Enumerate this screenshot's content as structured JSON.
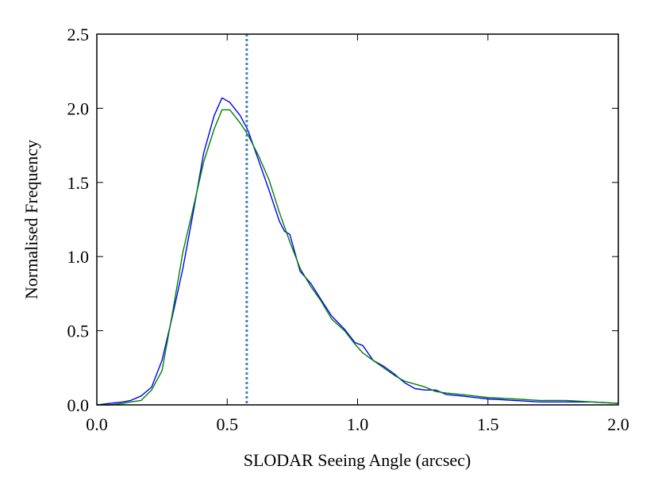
{
  "chart_data": {
    "type": "line",
    "title": "",
    "xlabel": "SLODAR Seeing Angle (arcsec)",
    "ylabel": "Normalised Frequency",
    "xlim": [
      0.0,
      2.0
    ],
    "ylim": [
      0.0,
      2.5
    ],
    "xticks": [
      0.0,
      0.5,
      1.0,
      1.5,
      2.0
    ],
    "xtick_labels": [
      "0.0",
      "0.5",
      "1.0",
      "1.5",
      "2.0"
    ],
    "yticks": [
      0.0,
      0.5,
      1.0,
      1.5,
      2.0,
      2.5
    ],
    "ytick_labels": [
      "0.0",
      "0.5",
      "1.0",
      "1.5",
      "2.0",
      "2.5"
    ],
    "grid": false,
    "series": [
      {
        "name": "blue",
        "color": "#0000ff",
        "x": [
          0.0,
          0.05,
          0.1,
          0.13,
          0.17,
          0.21,
          0.25,
          0.29,
          0.33,
          0.37,
          0.41,
          0.45,
          0.48,
          0.51,
          0.55,
          0.58,
          0.62,
          0.66,
          0.7,
          0.72,
          0.74,
          0.78,
          0.82,
          0.86,
          0.9,
          0.95,
          0.99,
          1.02,
          1.06,
          1.1,
          1.14,
          1.18,
          1.22,
          1.26,
          1.3,
          1.34,
          1.4,
          1.45,
          1.5,
          1.6,
          1.7,
          1.8,
          1.9,
          2.0
        ],
        "y": [
          0.0,
          0.01,
          0.02,
          0.03,
          0.06,
          0.12,
          0.3,
          0.6,
          0.92,
          1.3,
          1.7,
          1.95,
          2.07,
          2.04,
          1.95,
          1.85,
          1.65,
          1.45,
          1.24,
          1.17,
          1.15,
          0.9,
          0.82,
          0.71,
          0.6,
          0.51,
          0.42,
          0.4,
          0.3,
          0.26,
          0.21,
          0.15,
          0.11,
          0.1,
          0.1,
          0.07,
          0.06,
          0.05,
          0.04,
          0.03,
          0.02,
          0.02,
          0.02,
          0.01
        ]
      },
      {
        "name": "green",
        "color": "#008000",
        "x": [
          0.0,
          0.05,
          0.1,
          0.13,
          0.17,
          0.21,
          0.25,
          0.29,
          0.33,
          0.37,
          0.41,
          0.45,
          0.48,
          0.51,
          0.55,
          0.58,
          0.62,
          0.66,
          0.7,
          0.74,
          0.78,
          0.82,
          0.86,
          0.9,
          0.95,
          0.99,
          1.02,
          1.06,
          1.1,
          1.14,
          1.18,
          1.22,
          1.26,
          1.3,
          1.34,
          1.4,
          1.45,
          1.5,
          1.6,
          1.7,
          1.8,
          1.9,
          2.0
        ],
        "y": [
          0.0,
          0.0,
          0.01,
          0.02,
          0.03,
          0.1,
          0.23,
          0.62,
          1.03,
          1.33,
          1.64,
          1.86,
          1.99,
          1.99,
          1.9,
          1.82,
          1.68,
          1.52,
          1.3,
          1.1,
          0.92,
          0.8,
          0.7,
          0.58,
          0.5,
          0.41,
          0.35,
          0.3,
          0.25,
          0.2,
          0.16,
          0.14,
          0.12,
          0.09,
          0.08,
          0.07,
          0.06,
          0.05,
          0.04,
          0.03,
          0.03,
          0.02,
          0.01
        ]
      }
    ],
    "vline": {
      "x": 0.575,
      "style": "dotted",
      "color": "#4a7fbf"
    }
  }
}
